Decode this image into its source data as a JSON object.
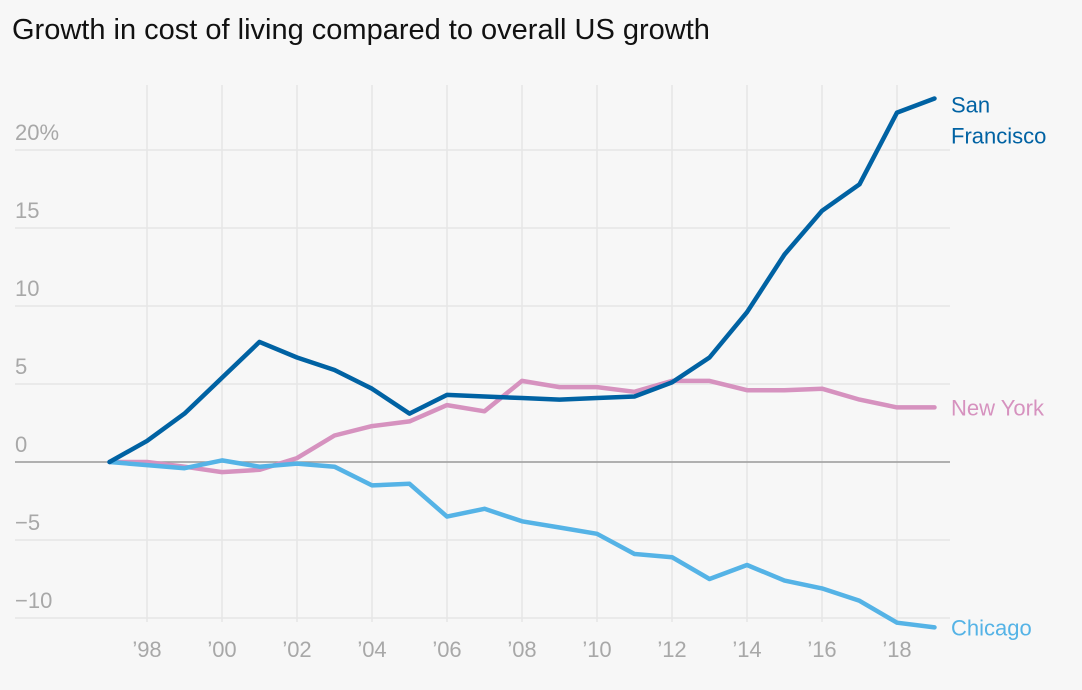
{
  "chart_data": {
    "type": "line",
    "title": "Growth in cost of living compared to overall US growth",
    "xlabel": "",
    "ylabel": "",
    "x": [
      1997,
      1998,
      1999,
      2000,
      2001,
      2002,
      2003,
      2004,
      2005,
      2006,
      2007,
      2008,
      2009,
      2010,
      2011,
      2012,
      2013,
      2014,
      2015,
      2016,
      2017,
      2018,
      2019
    ],
    "xlim": [
      1997,
      2019
    ],
    "ylim": [
      -11,
      24
    ],
    "grid": true,
    "legend": "direct labels at line ends",
    "x_ticks": [
      {
        "value": 1998,
        "label": "’98"
      },
      {
        "value": 2000,
        "label": "’00"
      },
      {
        "value": 2002,
        "label": "’02"
      },
      {
        "value": 2004,
        "label": "’04"
      },
      {
        "value": 2006,
        "label": "’06"
      },
      {
        "value": 2008,
        "label": "’08"
      },
      {
        "value": 2010,
        "label": "’10"
      },
      {
        "value": 2012,
        "label": "’12"
      },
      {
        "value": 2014,
        "label": "’14"
      },
      {
        "value": 2016,
        "label": "’16"
      },
      {
        "value": 2018,
        "label": "’18"
      }
    ],
    "y_ticks": [
      {
        "value": 20,
        "label": "20%"
      },
      {
        "value": 15,
        "label": "15"
      },
      {
        "value": 10,
        "label": "10"
      },
      {
        "value": 5,
        "label": "5"
      },
      {
        "value": 0,
        "label": "0"
      },
      {
        "value": -5,
        "label": "−5"
      },
      {
        "value": -10,
        "label": "−10"
      }
    ],
    "series": [
      {
        "name": "San Francisco",
        "label_lines": [
          "San",
          "Francisco"
        ],
        "color": "#0062a3",
        "values": [
          0,
          1.35,
          3.1,
          5.4,
          7.7,
          6.7,
          5.9,
          4.7,
          3.1,
          4.3,
          4.2,
          4.1,
          4.0,
          4.1,
          4.2,
          5.1,
          6.7,
          9.6,
          13.3,
          16.1,
          17.8,
          22.4,
          23.3
        ]
      },
      {
        "name": "New York",
        "label_lines": [
          "New York"
        ],
        "color": "#d692bf",
        "values": [
          0,
          0,
          -0.3,
          -0.65,
          -0.5,
          0.25,
          1.7,
          2.3,
          2.6,
          3.65,
          3.25,
          5.2,
          4.8,
          4.8,
          4.5,
          5.2,
          5.2,
          4.6,
          4.6,
          4.7,
          4.0,
          3.5,
          3.5
        ]
      },
      {
        "name": "Chicago",
        "label_lines": [
          "Chicago"
        ],
        "color": "#55b3e6",
        "values": [
          0,
          -0.2,
          -0.4,
          0.1,
          -0.3,
          -0.1,
          -0.3,
          -1.5,
          -1.4,
          -3.5,
          -3.0,
          -3.8,
          -4.2,
          -4.6,
          -5.9,
          -6.1,
          -7.5,
          -6.6,
          -7.6,
          -8.1,
          -8.9,
          -10.3,
          -10.6
        ]
      }
    ]
  }
}
